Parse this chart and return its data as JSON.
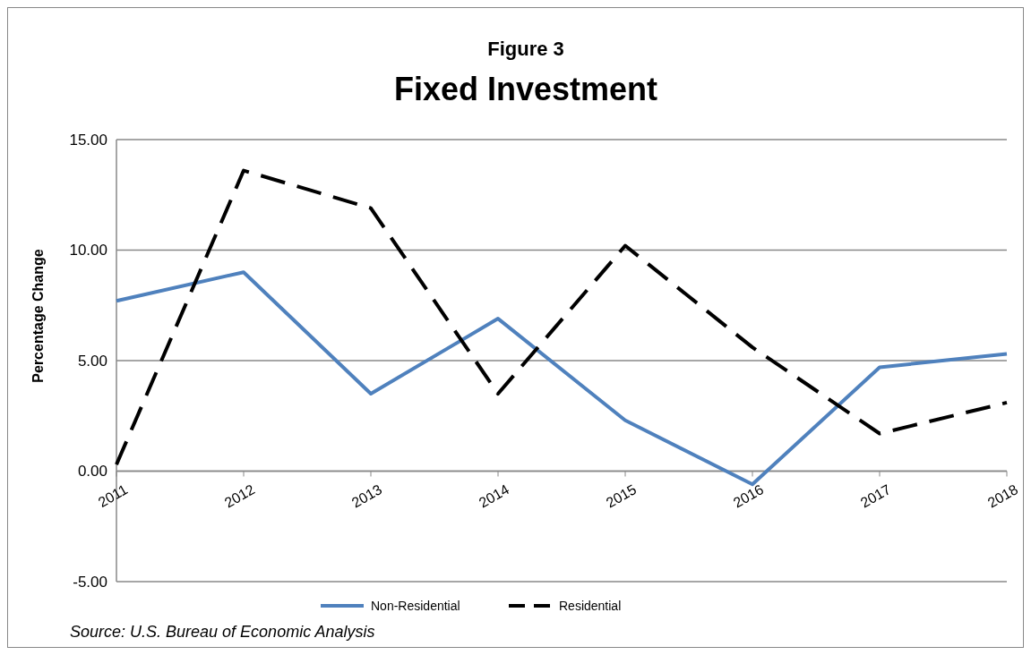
{
  "chart_data": {
    "type": "line",
    "subtitle": "Figure 3",
    "title": "Fixed Investment",
    "ylabel": "Percentage Change",
    "categories": [
      "2011",
      "2012",
      "2013",
      "2014",
      "2015",
      "2016",
      "2017",
      "2018"
    ],
    "series": [
      {
        "name": "Non-Residential",
        "color": "#4f81bd",
        "line_style": "solid",
        "values": [
          7.7,
          9.0,
          3.5,
          6.9,
          2.3,
          -0.6,
          4.7,
          5.3
        ]
      },
      {
        "name": "Residential",
        "color": "#000000",
        "line_style": "dashed",
        "values": [
          0.3,
          13.6,
          11.9,
          3.5,
          10.2,
          5.6,
          1.7,
          3.1
        ]
      }
    ],
    "ylim": [
      -5,
      15
    ],
    "yticks": [
      {
        "value": -5,
        "label": "-5.00"
      },
      {
        "value": 0,
        "label": "0.00"
      },
      {
        "value": 5,
        "label": "5.00"
      },
      {
        "value": 10,
        "label": "10.00"
      },
      {
        "value": 15,
        "label": "15.00"
      }
    ],
    "grid": "y",
    "legend": "bottom",
    "annotations": [
      "Source:  U.S. Bureau of Economic Analysis"
    ]
  }
}
